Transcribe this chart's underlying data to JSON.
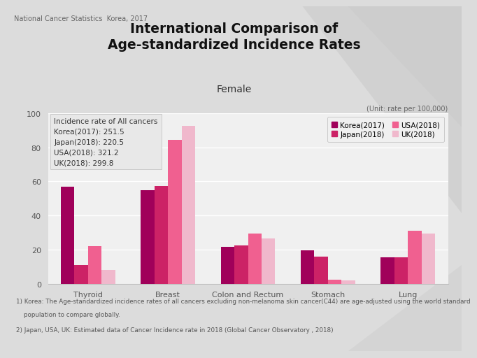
{
  "title_line1": "International Comparison of",
  "title_line2": "Age-standardized Incidence Rates",
  "subtitle": "Female",
  "unit_label": "(Unit: rate per 100,000)",
  "header_label": "National Cancer Statistics  Korea, 2017",
  "categories": [
    "Thyroid",
    "Breast",
    "Colon and Rectum",
    "Stomach",
    "Lung"
  ],
  "series": [
    {
      "label": "Korea(2017)",
      "color": "#a0005a",
      "values": [
        57.0,
        55.0,
        21.5,
        19.5,
        15.5
      ]
    },
    {
      "label": "Japan(2018)",
      "color": "#cc2266",
      "values": [
        11.0,
        57.5,
        22.5,
        16.0,
        15.5
      ]
    },
    {
      "label": "USA(2018)",
      "color": "#f06090",
      "values": [
        22.0,
        84.5,
        29.5,
        2.5,
        31.0
      ]
    },
    {
      "label": "UK(2018)",
      "color": "#f0b8cc",
      "values": [
        8.0,
        92.5,
        26.5,
        2.0,
        29.5
      ]
    }
  ],
  "ylim": [
    0,
    100
  ],
  "yticks": [
    0,
    20,
    40,
    60,
    80,
    100
  ],
  "annotation_box": {
    "title": "Incidence rate of All cancers",
    "lines": [
      "Korea(2017): 251.5",
      "Japan(2018): 220.5",
      "USA(2018): 321.2",
      "UK(2018): 299.8"
    ]
  },
  "footnote1": "1) Korea: The Age-standardized incidence rates of all cancers excluding non-melanoma skin cancer(C44) are age-adjusted using the world standard",
  "footnote1b": "    population to compare globally.",
  "footnote2": "2) Japan, USA, UK: Estimated data of Cancer Incidence rate in 2018 (Global Cancer Observatory , 2018)",
  "background_color": "#dcdcdc",
  "plot_bg_color": "#f0f0f0",
  "grid_color": "#ffffff",
  "legend_cols": 2
}
